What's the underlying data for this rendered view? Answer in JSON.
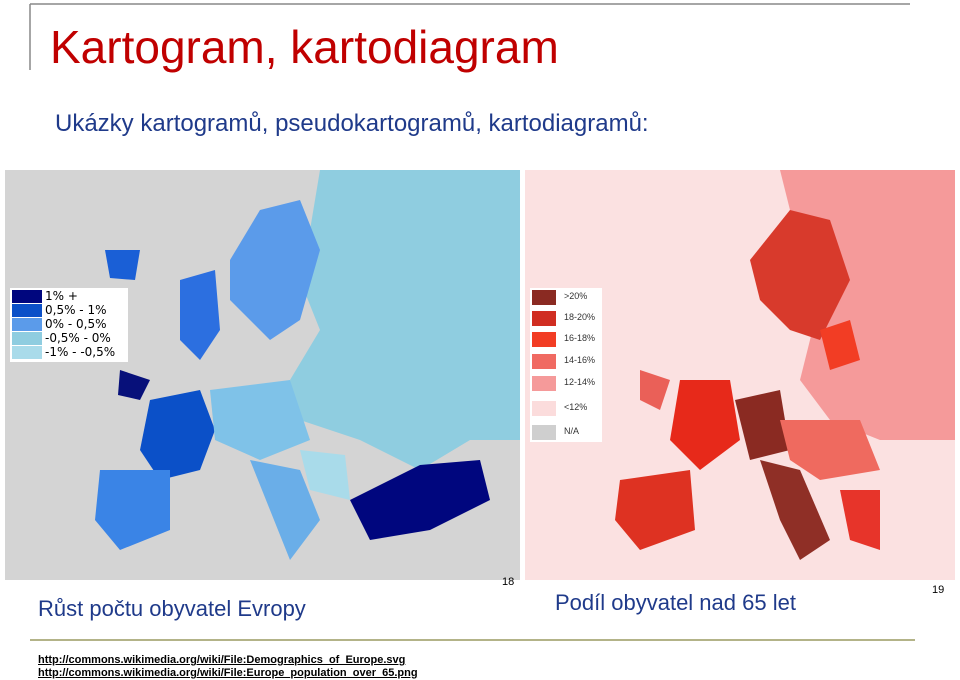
{
  "header": {
    "title": "Kartogram, kartodiagram",
    "subtitle": "Ukázky kartogramů, pseudokartogramů, kartodiagramů:"
  },
  "maps": [
    {
      "caption": "Růst počtu obyvatel Evropy",
      "page": "18",
      "legend": [
        "1% +",
        "0,5% - 1%",
        "0% - 0,5%",
        "-0,5% - 0%",
        "-1% - -0,5%"
      ]
    },
    {
      "caption": "Podíl obyvatel nad 65 let",
      "page": "19",
      "legend": [
        ">20%",
        "18-20%",
        "16-18%",
        "14-16%",
        "12-14%",
        "<12%",
        "N/A"
      ]
    }
  ],
  "links": [
    "http://commons.wikimedia.org/wiki/File:Demographics_of_Europe.svg",
    "http://commons.wikimedia.org/wiki/File:Europe_population_over_65.png"
  ]
}
